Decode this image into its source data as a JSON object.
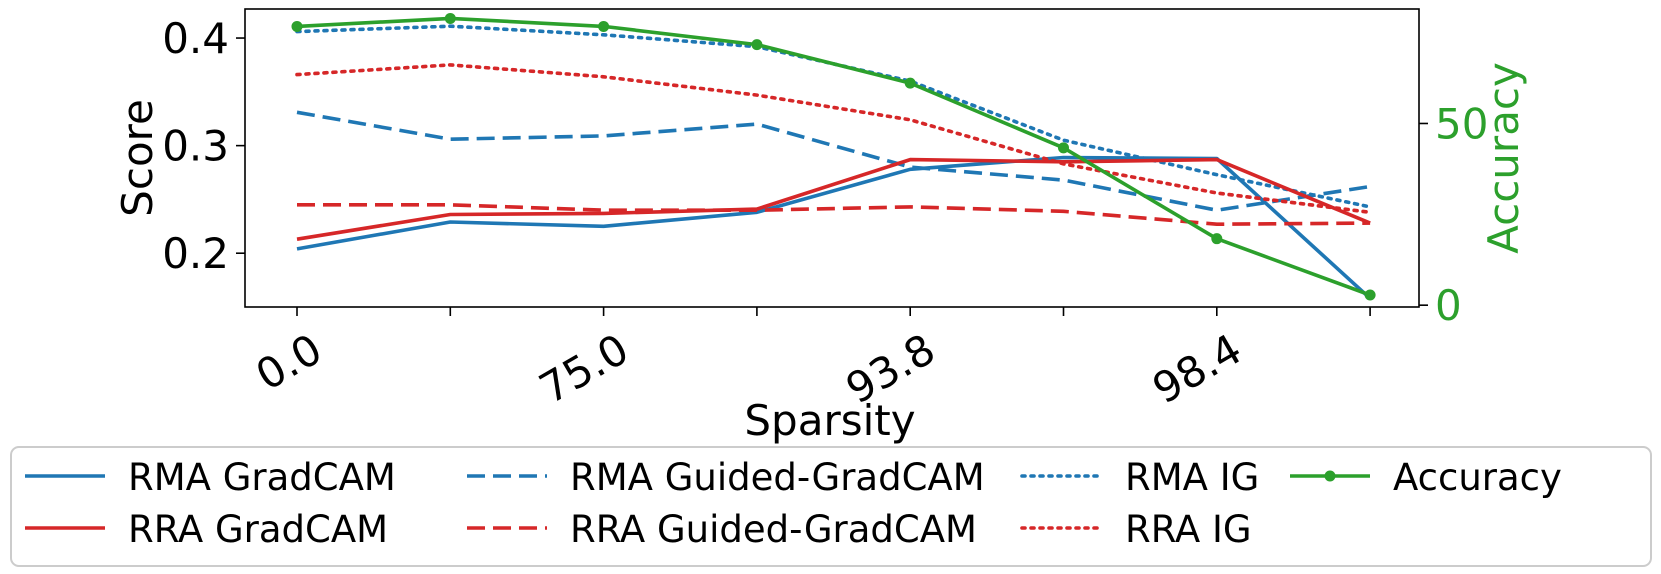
{
  "chart_data": {
    "type": "line",
    "xlabel": "Sparsity",
    "ylabel": "Score",
    "y2label": "Accuracy",
    "x_tick_labels": [
      "0.0",
      "75.0",
      "93.8",
      "98.4"
    ],
    "x_tick_indices": [
      0,
      2,
      4,
      6
    ],
    "x_count": 8,
    "ylim": [
      0.15,
      0.427
    ],
    "yticks": [
      0.2,
      0.3,
      0.4
    ],
    "y2lim": [
      -0.5,
      81.5
    ],
    "y2ticks": [
      0,
      50
    ],
    "series": [
      {
        "name": "RMA GradCAM",
        "axis": "left",
        "color": "#1f77b4",
        "style": "solid",
        "values": [
          0.204,
          0.229,
          0.225,
          0.238,
          0.278,
          0.289,
          0.288,
          0.158
        ]
      },
      {
        "name": "RMA Guided-GradCAM",
        "axis": "left",
        "color": "#1f77b4",
        "style": "dashed",
        "values": [
          0.331,
          0.306,
          0.309,
          0.32,
          0.28,
          0.268,
          0.24,
          0.262
        ]
      },
      {
        "name": "RMA IG",
        "axis": "left",
        "color": "#1f77b4",
        "style": "dotted",
        "values": [
          0.406,
          0.411,
          0.403,
          0.392,
          0.36,
          0.305,
          0.273,
          0.243
        ]
      },
      {
        "name": "RRA GradCAM",
        "axis": "left",
        "color": "#d62728",
        "style": "solid",
        "values": [
          0.213,
          0.236,
          0.237,
          0.241,
          0.287,
          0.285,
          0.287,
          0.228
        ]
      },
      {
        "name": "RRA Guided-GradCAM",
        "axis": "left",
        "color": "#d62728",
        "style": "dashed",
        "values": [
          0.245,
          0.245,
          0.24,
          0.24,
          0.243,
          0.239,
          0.227,
          0.228
        ]
      },
      {
        "name": "RRA IG",
        "axis": "left",
        "color": "#d62728",
        "style": "dotted",
        "values": [
          0.366,
          0.375,
          0.364,
          0.347,
          0.324,
          0.283,
          0.256,
          0.238
        ]
      },
      {
        "name": "Accuracy",
        "axis": "right",
        "color": "#2ca02c",
        "style": "solid-marker",
        "values": [
          76.7,
          78.9,
          76.7,
          71.7,
          61.1,
          43.3,
          18.3,
          2.8
        ]
      }
    ],
    "legend": {
      "placement": "bottom",
      "columns": [
        [
          "RMA GradCAM",
          "RRA GradCAM"
        ],
        [
          "RMA Guided-GradCAM",
          "RRA Guided-GradCAM"
        ],
        [
          "RMA IG",
          "RRA IG"
        ],
        [
          "Accuracy"
        ]
      ]
    }
  }
}
